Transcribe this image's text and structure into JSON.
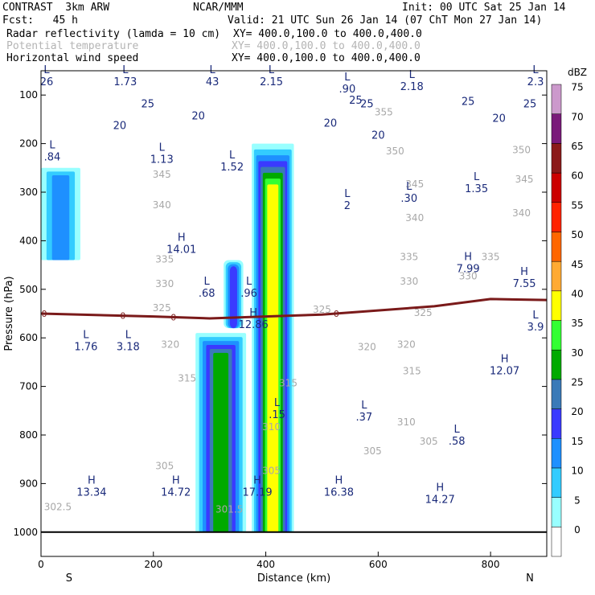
{
  "header": {
    "model": "CONTRAST  3km ARW",
    "center": "NCAR/MMM",
    "init": "Init: 00 UTC Sat 25 Jan 14",
    "fcst": "Fcst:   45 h",
    "valid": "Valid: 21 UTC Sun 26 Jan 14 (07 ChT Mon 27 Jan 14)",
    "field1": "Radar reflectivity (lamda = 10 cm)",
    "field1_xy": "XY= 400.0,100.0 to 400.0,400.0",
    "field2": "Potential temperature",
    "field2_xy": "XY= 400.0,100.0 to 400.0,400.0",
    "field3": "Horizontal wind speed",
    "field3_xy": "XY= 400.0,100.0 to 400.0,400.0"
  },
  "chart_data": {
    "type": "heatmap",
    "xlabel": "Distance (km)",
    "ylabel": "Pressure (hPa)",
    "xlim": [
      0,
      900
    ],
    "ylim": [
      1050,
      50
    ],
    "x_ticks": [
      0,
      200,
      400,
      600,
      800
    ],
    "y_ticks": [
      100,
      200,
      300,
      400,
      500,
      600,
      700,
      800,
      900,
      1000
    ],
    "left_end_label": "S",
    "right_end_label": "N",
    "colorbar": {
      "unit": "dBZ",
      "levels": [
        0,
        5,
        10,
        15,
        20,
        25,
        30,
        35,
        40,
        45,
        50,
        55,
        60,
        65,
        70,
        75
      ],
      "colors": [
        "#ffffff",
        "#99ffff",
        "#33ccff",
        "#1e90ff",
        "#3a3aff",
        "#3a7ab8",
        "#00aa00",
        "#33ff33",
        "#ffff00",
        "#ffaa33",
        "#ff6600",
        "#ff2200",
        "#cc0000",
        "#8b1a1a",
        "#7a1a7a",
        "#cc99cc"
      ]
    },
    "reflectivity_cells": [
      {
        "x": [
          275,
          365
        ],
        "p_top": 590,
        "p_bottom": 1000,
        "max_dbz": 30
      },
      {
        "x": [
          375,
          450
        ],
        "p_top": 200,
        "p_bottom": 1000,
        "max_dbz": 40
      },
      {
        "x": [
          325,
          360
        ],
        "p_top": 440,
        "p_bottom": 580,
        "max_dbz": 20
      },
      {
        "x": [
          0,
          70
        ],
        "p_top": 250,
        "p_bottom": 440,
        "max_dbz": 15
      }
    ],
    "freezing_level": {
      "label": "0",
      "points": [
        [
          0,
          550
        ],
        [
          200,
          556
        ],
        [
          300,
          560
        ],
        [
          500,
          552
        ],
        [
          700,
          535
        ],
        [
          800,
          520
        ],
        [
          900,
          522
        ]
      ]
    },
    "theta_labels": [
      {
        "x": 30,
        "p": 955,
        "text": "302.5"
      },
      {
        "x": 335,
        "p": 960,
        "text": "301.5"
      },
      {
        "x": 220,
        "p": 870,
        "text": "305"
      },
      {
        "x": 410,
        "p": 880,
        "text": "305"
      },
      {
        "x": 590,
        "p": 840,
        "text": "305"
      },
      {
        "x": 690,
        "p": 820,
        "text": "305"
      },
      {
        "x": 410,
        "p": 790,
        "text": "310"
      },
      {
        "x": 650,
        "p": 780,
        "text": "310"
      },
      {
        "x": 260,
        "p": 690,
        "text": "315"
      },
      {
        "x": 440,
        "p": 700,
        "text": "315"
      },
      {
        "x": 660,
        "p": 675,
        "text": "315"
      },
      {
        "x": 230,
        "p": 620,
        "text": "320"
      },
      {
        "x": 580,
        "p": 625,
        "text": "320"
      },
      {
        "x": 650,
        "p": 620,
        "text": "320"
      },
      {
        "x": 215,
        "p": 545,
        "text": "325"
      },
      {
        "x": 500,
        "p": 548,
        "text": "325"
      },
      {
        "x": 680,
        "p": 555,
        "text": "325"
      },
      {
        "x": 220,
        "p": 495,
        "text": "330"
      },
      {
        "x": 655,
        "p": 490,
        "text": "330"
      },
      {
        "x": 760,
        "p": 480,
        "text": "330"
      },
      {
        "x": 220,
        "p": 445,
        "text": "335"
      },
      {
        "x": 655,
        "p": 440,
        "text": "335"
      },
      {
        "x": 800,
        "p": 440,
        "text": "335"
      },
      {
        "x": 215,
        "p": 333,
        "text": "340"
      },
      {
        "x": 665,
        "p": 360,
        "text": "340"
      },
      {
        "x": 855,
        "p": 350,
        "text": "340"
      },
      {
        "x": 215,
        "p": 270,
        "text": "345"
      },
      {
        "x": 665,
        "p": 290,
        "text": "345"
      },
      {
        "x": 860,
        "p": 280,
        "text": "345"
      },
      {
        "x": 630,
        "p": 222,
        "text": "350"
      },
      {
        "x": 855,
        "p": 220,
        "text": "350"
      },
      {
        "x": 610,
        "p": 142,
        "text": "355"
      }
    ],
    "wind_labels": [
      {
        "x": 190,
        "p": 125,
        "text": "25"
      },
      {
        "x": 580,
        "p": 125,
        "text": "25"
      },
      {
        "x": 760,
        "p": 120,
        "text": "25"
      },
      {
        "x": 870,
        "p": 125,
        "text": "25"
      },
      {
        "x": 560,
        "p": 118,
        "text": "25"
      },
      {
        "x": 280,
        "p": 150,
        "text": "20"
      },
      {
        "x": 140,
        "p": 170,
        "text": "20"
      },
      {
        "x": 515,
        "p": 165,
        "text": "20"
      },
      {
        "x": 600,
        "p": 190,
        "text": "20"
      },
      {
        "x": 815,
        "p": 155,
        "text": "20"
      }
    ],
    "pressure_centers": [
      {
        "type": "L",
        "x": 20,
        "p": 230,
        "value": ".84"
      },
      {
        "type": "L",
        "x": 215,
        "p": 235,
        "value": "1.13"
      },
      {
        "type": "L",
        "x": 340,
        "p": 250,
        "value": "1.52"
      },
      {
        "type": "L",
        "x": 545,
        "p": 330,
        "value": "2"
      },
      {
        "type": "L",
        "x": 655,
        "p": 315,
        "value": ".30"
      },
      {
        "type": "L",
        "x": 775,
        "p": 295,
        "value": "1.35"
      },
      {
        "type": "H",
        "x": 250,
        "p": 420,
        "value": "14.01"
      },
      {
        "type": "H",
        "x": 760,
        "p": 460,
        "value": "7.99"
      },
      {
        "type": "H",
        "x": 860,
        "p": 490,
        "value": "7.55"
      },
      {
        "type": "L",
        "x": 295,
        "p": 510,
        "value": ".68"
      },
      {
        "type": "L",
        "x": 370,
        "p": 510,
        "value": ".96"
      },
      {
        "type": "H",
        "x": 378,
        "p": 575,
        "value": "12.86"
      },
      {
        "type": "L",
        "x": 880,
        "p": 580,
        "value": "3.9"
      },
      {
        "type": "L",
        "x": 80,
        "p": 620,
        "value": "1.76"
      },
      {
        "type": "L",
        "x": 155,
        "p": 620,
        "value": "3.18"
      },
      {
        "type": "H",
        "x": 825,
        "p": 670,
        "value": "12.07"
      },
      {
        "type": "L",
        "x": 420,
        "p": 760,
        "value": ".15"
      },
      {
        "type": "L",
        "x": 575,
        "p": 765,
        "value": ".37"
      },
      {
        "type": "L",
        "x": 740,
        "p": 815,
        "value": ".58"
      },
      {
        "type": "H",
        "x": 90,
        "p": 920,
        "value": "13.34"
      },
      {
        "type": "H",
        "x": 240,
        "p": 920,
        "value": "14.72"
      },
      {
        "type": "H",
        "x": 385,
        "p": 920,
        "value": "17.19"
      },
      {
        "type": "H",
        "x": 530,
        "p": 920,
        "value": "16.38"
      },
      {
        "type": "H",
        "x": 710,
        "p": 935,
        "value": "14.27"
      },
      {
        "type": "L",
        "x": 10,
        "p": 75,
        "value": "26"
      },
      {
        "type": "L",
        "x": 150,
        "p": 75,
        "value": "1.73"
      },
      {
        "type": "L",
        "x": 305,
        "p": 75,
        "value": "43"
      },
      {
        "type": "L",
        "x": 410,
        "p": 75,
        "value": "2.15"
      },
      {
        "type": "L",
        "x": 545,
        "p": 90,
        "value": ".90"
      },
      {
        "type": "L",
        "x": 660,
        "p": 85,
        "value": "2.18"
      },
      {
        "type": "L",
        "x": 880,
        "p": 75,
        "value": "2.3"
      }
    ]
  }
}
